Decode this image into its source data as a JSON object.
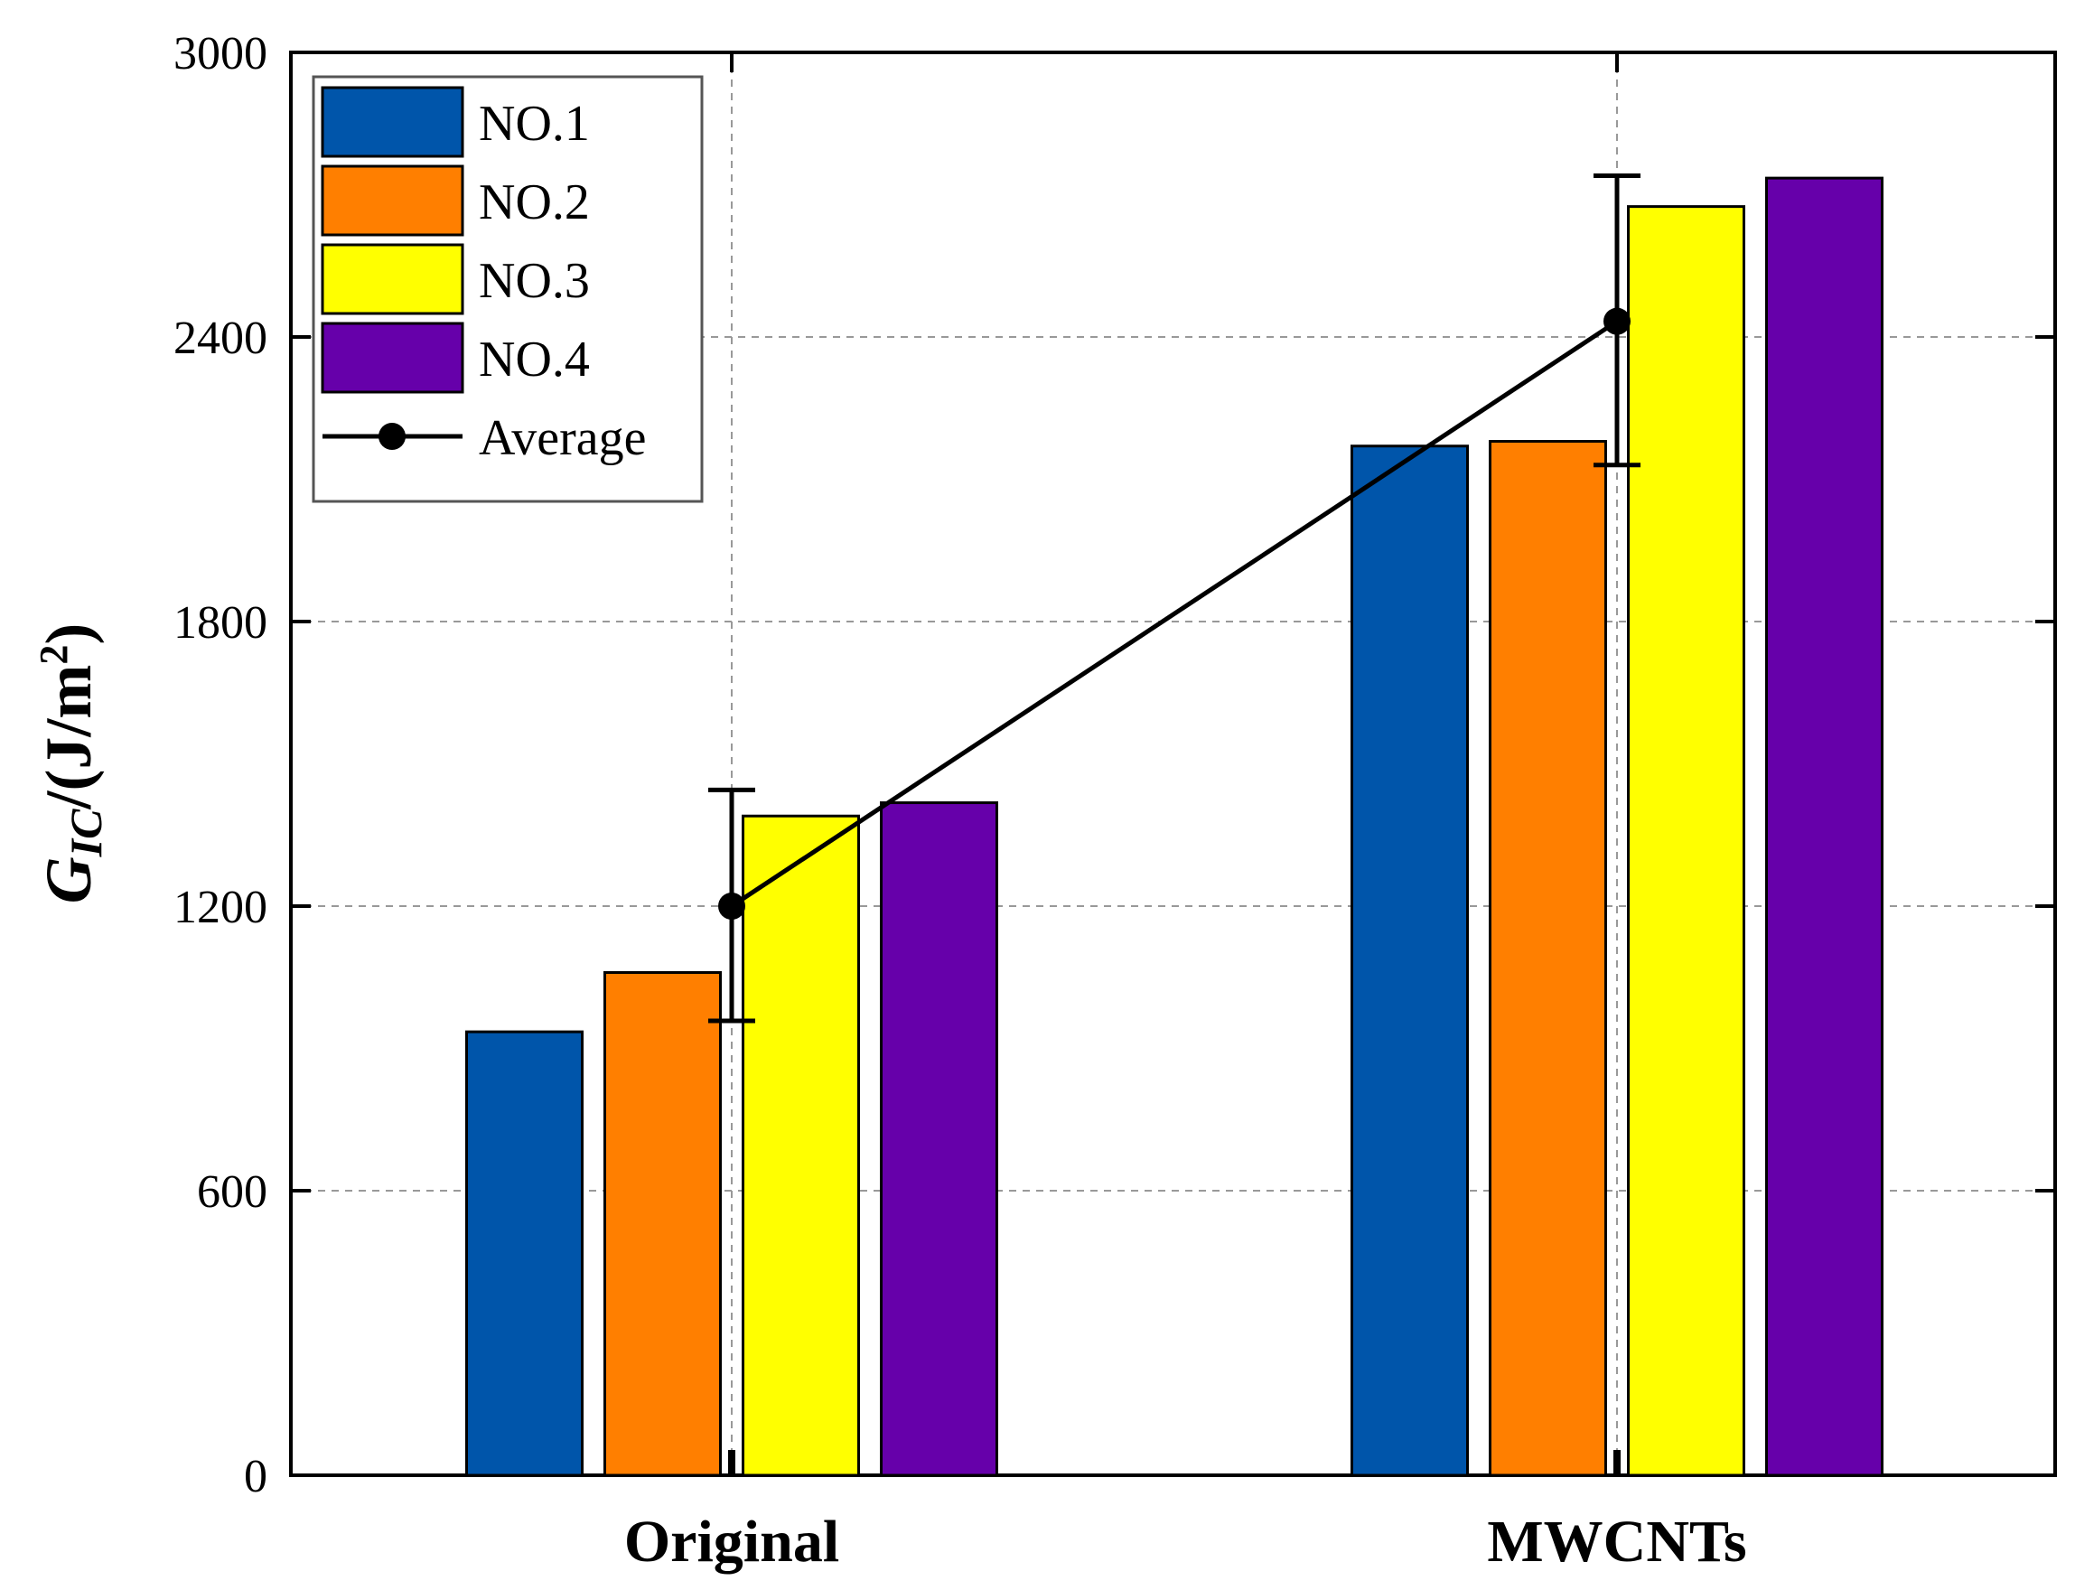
{
  "chart_data": {
    "type": "bar",
    "categories": [
      "Original",
      "MWCNTs"
    ],
    "series": [
      {
        "name": "NO.1",
        "color": "#0055AA",
        "values": [
          935,
          2170
        ]
      },
      {
        "name": "NO.2",
        "color": "#FF7F00",
        "values": [
          1060,
          2180
        ]
      },
      {
        "name": "NO.3",
        "color": "#FFFF00",
        "values": [
          1390,
          2675
        ]
      },
      {
        "name": "NO.4",
        "color": "#6600AA",
        "values": [
          1418,
          2735
        ]
      }
    ],
    "average": {
      "name": "Average",
      "color": "#000000",
      "values": [
        1200,
        2433
      ],
      "error_low": [
        958,
        2130
      ],
      "error_high": [
        1445,
        2740
      ]
    },
    "ylabel_main": "G",
    "ylabel_sub": "IC",
    "ylabel_unit": "/(J/m",
    "ylabel_sup": "2",
    "ylabel_close": ")",
    "ylim": [
      0,
      3000
    ],
    "yticks": [
      "0",
      "600",
      "1200",
      "1800",
      "2400",
      "3000"
    ],
    "ytick_values": [
      0,
      600,
      1200,
      1800,
      2400,
      3000
    ],
    "grid": true,
    "legend_position": "top-left"
  }
}
